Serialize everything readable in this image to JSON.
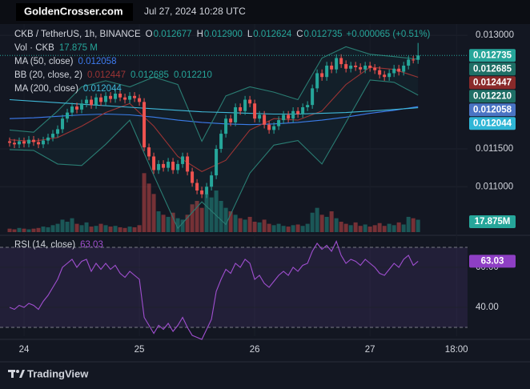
{
  "header": {
    "site": "GoldenCrosser.com",
    "timestamp": "Jul 27, 2024 10:28 UTC"
  },
  "chart_data": {
    "type": "candlestick",
    "title": "CKB / TetherUS, 1h, BINANCE",
    "ohlc_legend": [
      {
        "key": "O",
        "label": "0.012677"
      },
      {
        "key": "H",
        "label": "0.012900"
      },
      {
        "key": "L",
        "label": "0.012624"
      },
      {
        "key": "C",
        "label": "0.012735"
      }
    ],
    "change": "+0.000065 (+0.51%)",
    "up_color": "#26a69a",
    "down_color": "#ef5350",
    "xlim": [
      -2,
      95.3
    ],
    "xticks": [
      {
        "value": 3,
        "label": "24"
      },
      {
        "value": 27,
        "label": "25"
      },
      {
        "value": 51,
        "label": "26"
      },
      {
        "value": 75,
        "label": "27"
      },
      {
        "value": 93,
        "label": "18:00"
      }
    ],
    "ylim": [
      0.0104,
      0.01315
    ],
    "yticks": [
      {
        "value": 0.013,
        "label": "0.013000"
      },
      {
        "value": 0.0115,
        "label": "0.011500"
      },
      {
        "value": 0.011,
        "label": "0.011000"
      }
    ],
    "open": [
      0.0116,
      0.01158,
      0.01156,
      0.0116,
      0.01157,
      0.01162,
      0.01159,
      0.01156,
      0.01161,
      0.01165,
      0.0117,
      0.01176,
      0.0119,
      0.01198,
      0.01206,
      0.01202,
      0.0121,
      0.01215,
      0.01208,
      0.01218,
      0.01212,
      0.0122,
      0.01216,
      0.01223,
      0.01218,
      0.01215,
      0.0122,
      0.01217,
      0.01212,
      0.01152,
      0.0114,
      0.01122,
      0.0113,
      0.01125,
      0.01133,
      0.01122,
      0.0113,
      0.0114,
      0.0112,
      0.01105,
      0.01095,
      0.0109,
      0.011,
      0.01115,
      0.0115,
      0.0117,
      0.0119,
      0.01185,
      0.01205,
      0.012,
      0.01215,
      0.0121,
      0.0119,
      0.01195,
      0.01182,
      0.01175,
      0.0118,
      0.01188,
      0.01195,
      0.0119,
      0.012,
      0.01196,
      0.01205,
      0.01208,
      0.0123,
      0.0125,
      0.01245,
      0.0126,
      0.01255,
      0.0127,
      0.01262,
      0.01256,
      0.0126,
      0.01258,
      0.01255,
      0.0126,
      0.01257,
      0.01254,
      0.01248,
      0.01245,
      0.0125,
      0.01256,
      0.01252,
      0.0126,
      0.01268,
      0.012677
    ],
    "high": [
      0.01165,
      0.01163,
      0.01165,
      0.01165,
      0.01167,
      0.01167,
      0.01164,
      0.01166,
      0.0117,
      0.01175,
      0.01181,
      0.01195,
      0.01203,
      0.01211,
      0.01211,
      0.01215,
      0.0122,
      0.0122,
      0.01223,
      0.01223,
      0.01225,
      0.01225,
      0.01228,
      0.01228,
      0.01223,
      0.01225,
      0.01225,
      0.01222,
      0.01217,
      0.01157,
      0.01145,
      0.01135,
      0.01135,
      0.01138,
      0.01138,
      0.01135,
      0.01145,
      0.01145,
      0.01125,
      0.0111,
      0.011,
      0.01105,
      0.0112,
      0.01155,
      0.01175,
      0.01195,
      0.01195,
      0.0121,
      0.0121,
      0.0122,
      0.0122,
      0.01215,
      0.012,
      0.012,
      0.01187,
      0.01185,
      0.01193,
      0.012,
      0.012,
      0.01205,
      0.01205,
      0.0121,
      0.01213,
      0.01235,
      0.01255,
      0.01255,
      0.01265,
      0.01265,
      0.01275,
      0.01275,
      0.01267,
      0.01265,
      0.01265,
      0.01263,
      0.01265,
      0.01265,
      0.01262,
      0.01259,
      0.01253,
      0.01255,
      0.01261,
      0.01261,
      0.01265,
      0.01273,
      0.01273,
      0.0129
    ],
    "low": [
      0.01153,
      0.01151,
      0.01151,
      0.01152,
      0.01152,
      0.01154,
      0.01151,
      0.01151,
      0.01156,
      0.0116,
      0.01165,
      0.01171,
      0.01185,
      0.01193,
      0.01197,
      0.01197,
      0.01205,
      0.01203,
      0.01203,
      0.01207,
      0.01207,
      0.01211,
      0.01211,
      0.01213,
      0.0121,
      0.0121,
      0.01212,
      0.01207,
      0.01147,
      0.01135,
      0.01117,
      0.01117,
      0.0112,
      0.0112,
      0.01117,
      0.01117,
      0.01125,
      0.01115,
      0.011,
      0.0109,
      0.01085,
      0.01085,
      0.01095,
      0.0111,
      0.01145,
      0.01165,
      0.0118,
      0.0118,
      0.01195,
      0.01195,
      0.01205,
      0.01185,
      0.01185,
      0.01177,
      0.0117,
      0.0117,
      0.01175,
      0.01183,
      0.01185,
      0.01185,
      0.01191,
      0.01191,
      0.012,
      0.01203,
      0.01225,
      0.0124,
      0.0124,
      0.0125,
      0.0125,
      0.01257,
      0.01251,
      0.01251,
      0.01253,
      0.0125,
      0.0125,
      0.01252,
      0.01249,
      0.01243,
      0.0124,
      0.0124,
      0.01245,
      0.01247,
      0.01247,
      0.01255,
      0.01263,
      0.012624
    ],
    "close": [
      0.01158,
      0.01156,
      0.0116,
      0.01157,
      0.01162,
      0.01159,
      0.01156,
      0.01161,
      0.01165,
      0.0117,
      0.01176,
      0.0119,
      0.01198,
      0.01206,
      0.01202,
      0.0121,
      0.01215,
      0.01208,
      0.01218,
      0.01212,
      0.0122,
      0.01216,
      0.01223,
      0.01218,
      0.01215,
      0.0122,
      0.01217,
      0.01212,
      0.01152,
      0.0114,
      0.01122,
      0.0113,
      0.01125,
      0.01133,
      0.01122,
      0.0113,
      0.0114,
      0.0112,
      0.01105,
      0.01095,
      0.0109,
      0.011,
      0.01115,
      0.0115,
      0.0117,
      0.0119,
      0.01185,
      0.01205,
      0.012,
      0.01215,
      0.0121,
      0.0119,
      0.01195,
      0.01182,
      0.01175,
      0.0118,
      0.01188,
      0.01195,
      0.0119,
      0.012,
      0.01196,
      0.01205,
      0.01208,
      0.0123,
      0.0125,
      0.01245,
      0.0126,
      0.01255,
      0.0127,
      0.01262,
      0.01256,
      0.0126,
      0.01258,
      0.01255,
      0.0126,
      0.01257,
      0.01254,
      0.01248,
      0.01245,
      0.0125,
      0.01256,
      0.01252,
      0.0126,
      0.01268,
      0.012677,
      0.012735
    ],
    "volume": {
      "name": "Vol · CKB",
      "label": "17.875 M",
      "badge": "17.875M",
      "ylim": [
        0,
        300
      ],
      "values": [
        5,
        4,
        6,
        5,
        4,
        5,
        6,
        8,
        7,
        10,
        12,
        18,
        15,
        20,
        12,
        10,
        14,
        8,
        9,
        12,
        10,
        8,
        9,
        7,
        6,
        8,
        7,
        10,
        85,
        70,
        55,
        30,
        25,
        22,
        28,
        20,
        18,
        25,
        40,
        45,
        35,
        55,
        50,
        60,
        45,
        35,
        30,
        25,
        20,
        18,
        22,
        15,
        14,
        18,
        12,
        10,
        12,
        9,
        8,
        10,
        11,
        9,
        12,
        28,
        35,
        25,
        22,
        30,
        20,
        15,
        12,
        10,
        14,
        9,
        11,
        8,
        10,
        13,
        9,
        12,
        10,
        14,
        11,
        22,
        20,
        17.875
      ]
    },
    "overlay_x": [
      0,
      5,
      10,
      15,
      20,
      25,
      30,
      35,
      40,
      45,
      50,
      55,
      60,
      65,
      70,
      75,
      80,
      85
    ],
    "overlays": [
      {
        "name": "MA (50, close)",
        "lines": [
          {
            "color": "#3d7bf0",
            "badge_color": "#4a74c4",
            "label": "0.012058",
            "values": [
              0.0119,
              0.01191,
              0.01193,
              0.01195,
              0.01196,
              0.01195,
              0.01192,
              0.01188,
              0.01185,
              0.01183,
              0.01182,
              0.01183,
              0.01185,
              0.01188,
              0.01192,
              0.01197,
              0.01201,
              0.012058
            ]
          }
        ]
      },
      {
        "name": "BB (20, close, 2)",
        "fill": "rgba(38,166,154,0.06)",
        "lines": [
          {
            "color": "#9b3434",
            "badge_color": "#8a2a2a",
            "label": "0.012447",
            "values": [
              0.01162,
              0.0116,
              0.01165,
              0.0118,
              0.01198,
              0.0121,
              0.0118,
              0.0114,
              0.0112,
              0.01135,
              0.01175,
              0.0119,
              0.01188,
              0.012,
              0.01235,
              0.01258,
              0.01255,
              0.012447
            ]
          },
          {
            "color": "#2a7d73",
            "badge_color": "#1f6f66",
            "label": "0.012685",
            "values": [
              0.01175,
              0.01172,
              0.012,
              0.01232,
              0.0124,
              0.01232,
              0.01245,
              0.01235,
              0.0116,
              0.0122,
              0.01232,
              0.01225,
              0.01215,
              0.0127,
              0.01285,
              0.01275,
              0.01272,
              0.012685
            ]
          },
          {
            "color": "#2a7d73",
            "badge_color": "#1f6f66",
            "label": "0.012210",
            "values": [
              0.01149,
              0.01148,
              0.0113,
              0.01128,
              0.01156,
              0.01188,
              0.01115,
              0.01045,
              0.0108,
              0.0105,
              0.01118,
              0.01155,
              0.01161,
              0.0113,
              0.01185,
              0.01241,
              0.01238,
              0.01221
            ]
          }
        ]
      },
      {
        "name": "MA (200, close)",
        "lines": [
          {
            "color": "#3fb8d8",
            "badge_color": "#2fb6d6",
            "label": "0.012044",
            "values": [
              0.01215,
              0.01213,
              0.01211,
              0.01209,
              0.01207,
              0.01205,
              0.01203,
              0.01201,
              0.01199,
              0.01198,
              0.01197,
              0.01196,
              0.01196,
              0.01197,
              0.01198,
              0.012,
              0.01202,
              0.012044
            ]
          }
        ]
      }
    ],
    "rsi": {
      "name": "RSI (14, close)",
      "label": "63.03",
      "color": "#a04fd0",
      "ylim": [
        25.6,
        75.2
      ],
      "levels": [
        30,
        70
      ],
      "yticks": [
        {
          "value": 60,
          "label": "60.00"
        },
        {
          "value": 40,
          "label": "40.00"
        }
      ],
      "values": [
        40,
        39,
        41,
        40,
        42,
        41,
        39,
        43,
        46,
        50,
        54,
        60,
        62,
        64,
        60,
        63,
        64,
        58,
        62,
        59,
        62,
        59,
        61,
        57,
        55,
        58,
        56,
        54,
        35,
        31,
        27,
        31,
        29,
        32,
        28,
        31,
        35,
        30,
        26,
        25,
        24,
        29,
        34,
        48,
        54,
        59,
        57,
        62,
        60,
        64,
        62,
        54,
        56,
        52,
        50,
        53,
        56,
        58,
        56,
        60,
        58,
        61,
        62,
        68,
        72,
        69,
        71,
        68,
        73,
        66,
        62,
        64,
        63,
        61,
        64,
        62,
        60,
        57,
        56,
        59,
        62,
        60,
        64,
        66,
        61,
        63.03
      ]
    }
  },
  "footer": {
    "brand": "TradingView"
  }
}
